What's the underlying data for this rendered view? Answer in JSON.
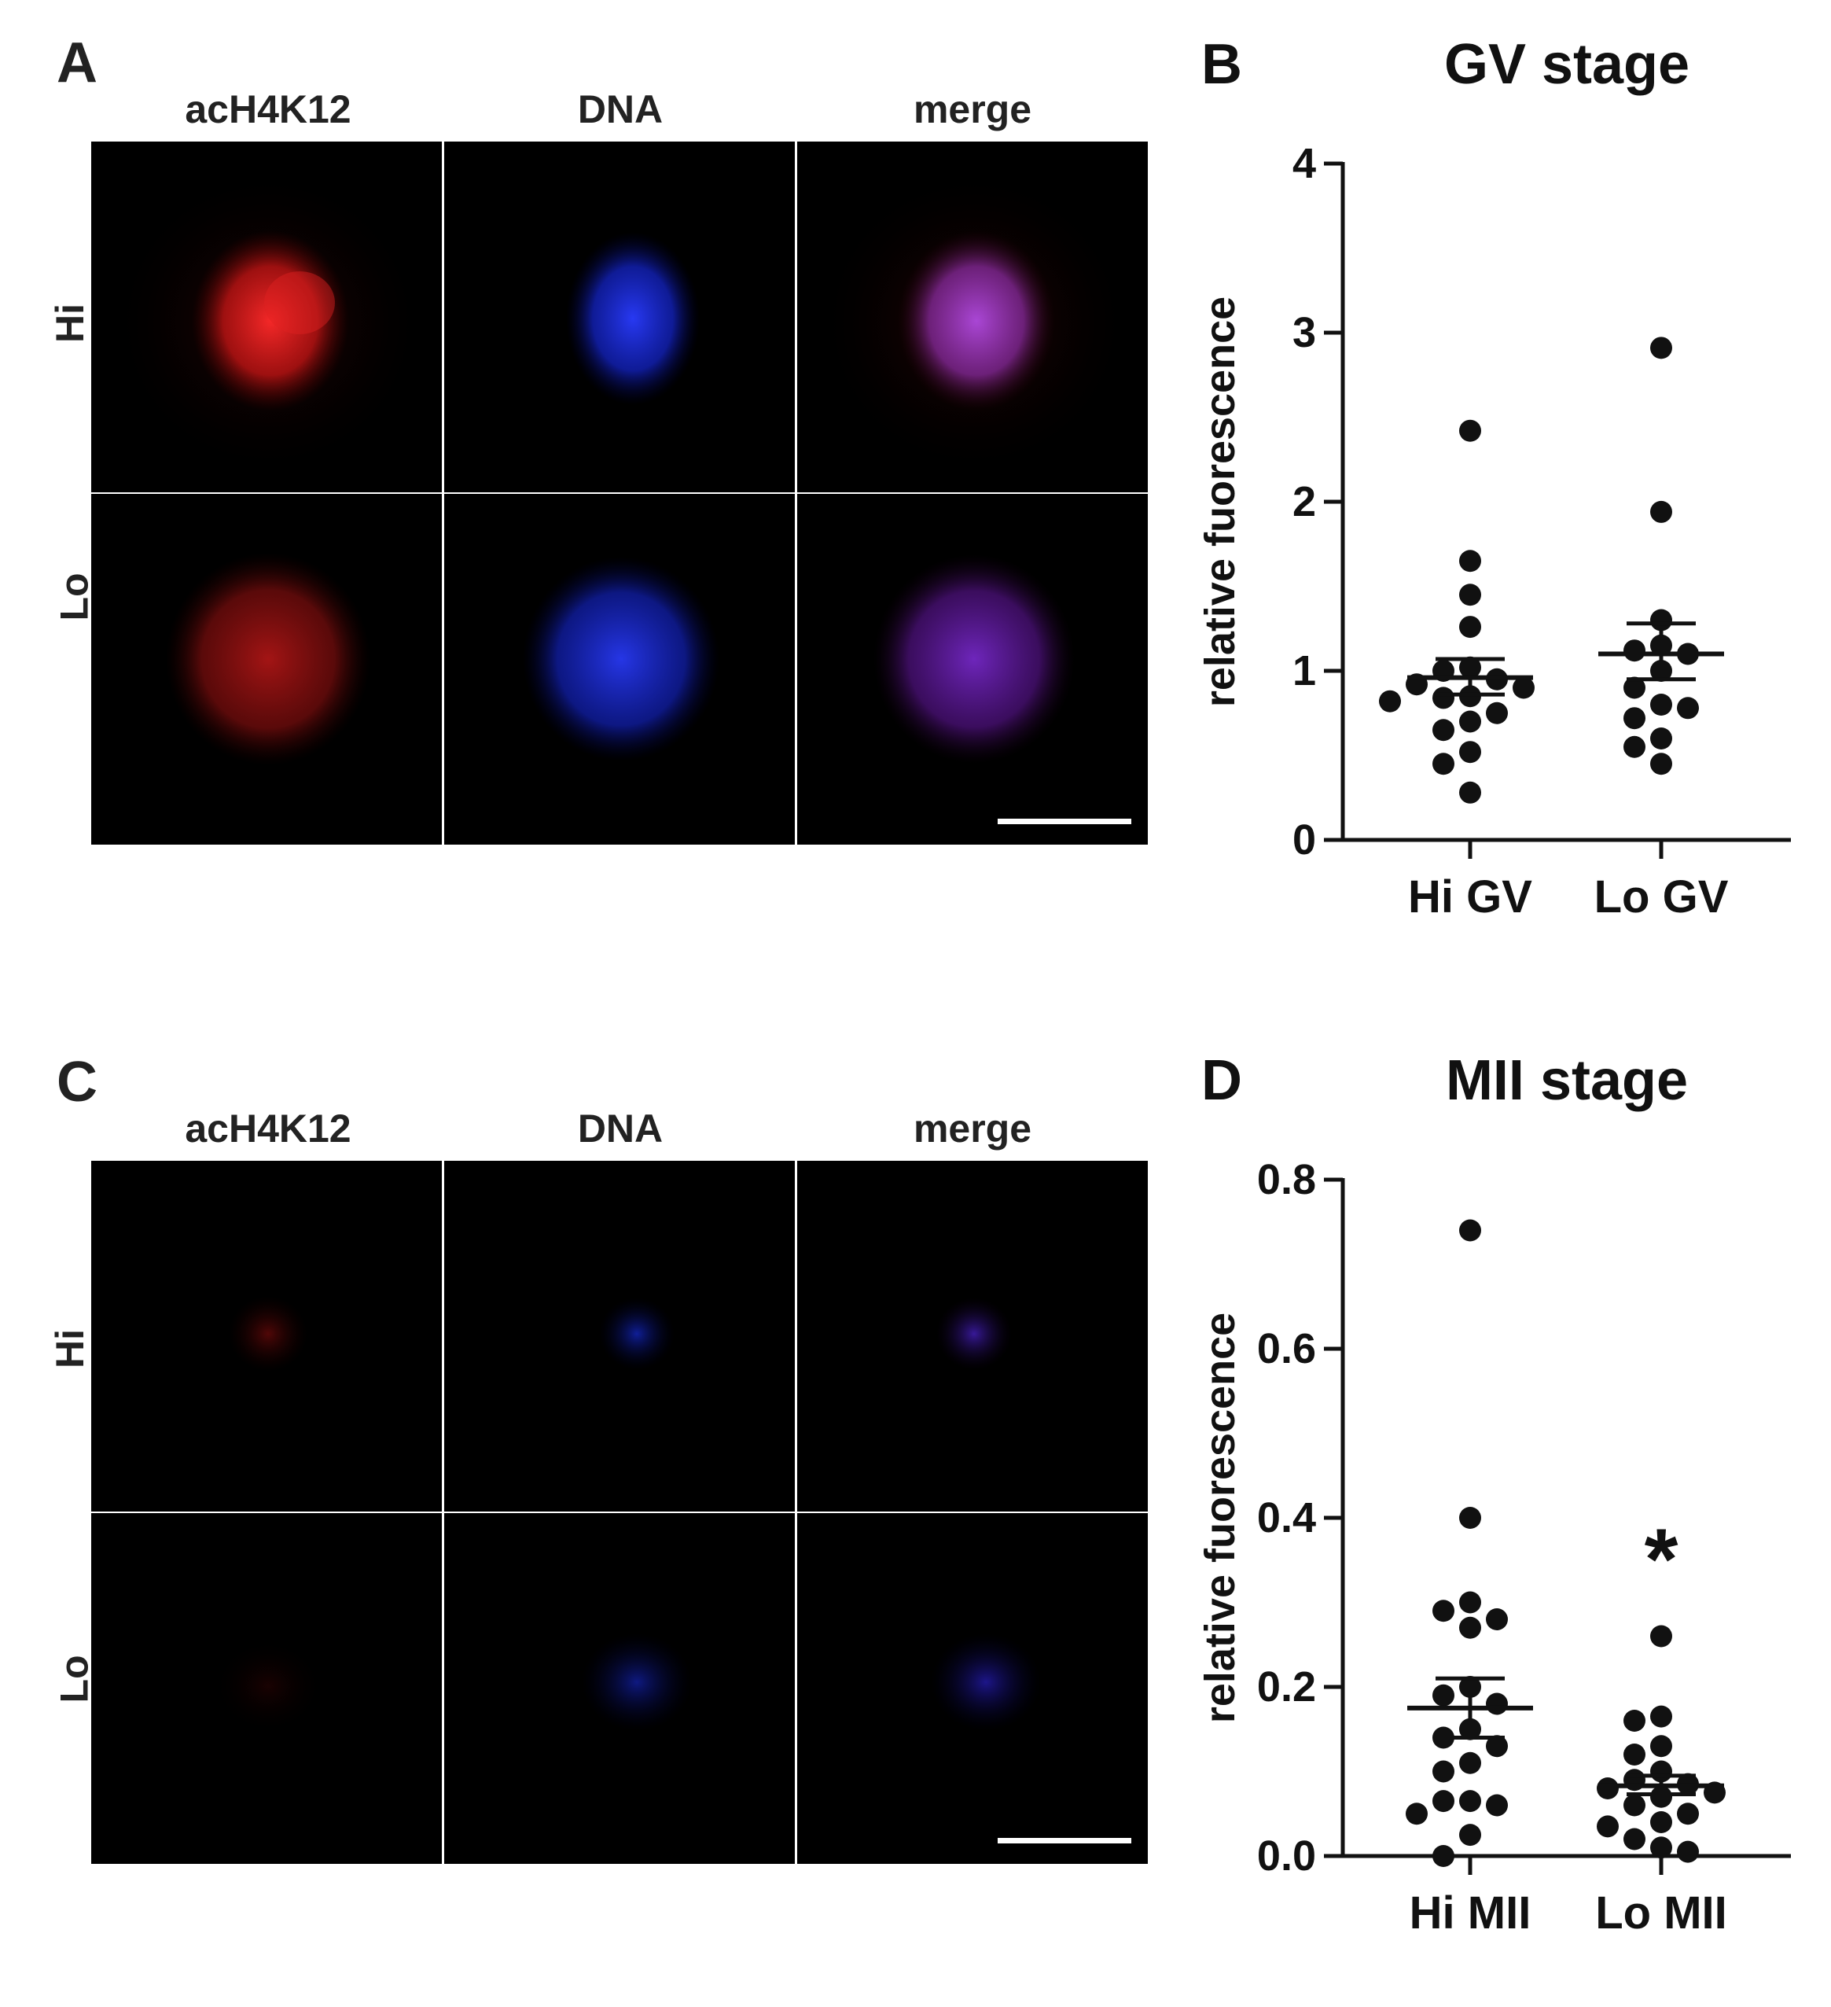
{
  "panels": [
    {
      "letter": "A",
      "columns": [
        "acH4K12",
        "DNA",
        "merge"
      ],
      "rows": [
        "Hi",
        "Lo"
      ]
    },
    {
      "letter": "C",
      "columns": [
        "acH4K12",
        "DNA",
        "merge"
      ],
      "rows": [
        "Hi",
        "Lo"
      ]
    }
  ],
  "chart_data": [
    {
      "panel_letter": "B",
      "type": "scatter",
      "title": "GV stage",
      "xlabel": "",
      "ylabel": "relative fuorescence",
      "ylim": [
        0,
        4
      ],
      "yticks": [
        "0",
        "1",
        "2",
        "3",
        "4"
      ],
      "categories": [
        "Hi GV",
        "Lo GV"
      ],
      "series": [
        {
          "category": "Hi GV",
          "mean": 0.96,
          "sem_low": 0.86,
          "sem_high": 1.07,
          "values": [
            2.42,
            1.65,
            1.45,
            1.26,
            1.02,
            1.0,
            0.95,
            0.92,
            0.9,
            0.85,
            0.84,
            0.82,
            0.75,
            0.7,
            0.65,
            0.52,
            0.45,
            0.28
          ]
        },
        {
          "category": "Lo GV",
          "mean": 1.1,
          "sem_low": 0.95,
          "sem_high": 1.28,
          "values": [
            2.91,
            1.94,
            1.3,
            1.15,
            1.12,
            1.1,
            1.0,
            0.9,
            0.8,
            0.78,
            0.72,
            0.6,
            0.55,
            0.45
          ]
        }
      ],
      "annotations": []
    },
    {
      "panel_letter": "D",
      "type": "scatter",
      "title": "MII stage",
      "xlabel": "",
      "ylabel": "relative fuorescence",
      "ylim": [
        0,
        0.8
      ],
      "yticks": [
        "0.0",
        "0.2",
        "0.4",
        "0.6",
        "0.8"
      ],
      "categories": [
        "Hi MII",
        "Lo MII"
      ],
      "series": [
        {
          "category": "Hi MII",
          "mean": 0.175,
          "sem_low": 0.14,
          "sem_high": 0.21,
          "values": [
            0.74,
            0.4,
            0.3,
            0.29,
            0.28,
            0.27,
            0.2,
            0.19,
            0.18,
            0.15,
            0.14,
            0.13,
            0.11,
            0.1,
            0.065,
            0.065,
            0.06,
            0.05,
            0.025,
            0.0
          ]
        },
        {
          "category": "Lo MII",
          "mean": 0.083,
          "sem_low": 0.073,
          "sem_high": 0.095,
          "values": [
            0.26,
            0.165,
            0.16,
            0.13,
            0.12,
            0.1,
            0.09,
            0.085,
            0.08,
            0.075,
            0.07,
            0.06,
            0.05,
            0.04,
            0.035,
            0.02,
            0.01,
            0.005
          ]
        }
      ],
      "annotations": [
        {
          "category": "Lo MII",
          "text": "*"
        }
      ]
    }
  ]
}
